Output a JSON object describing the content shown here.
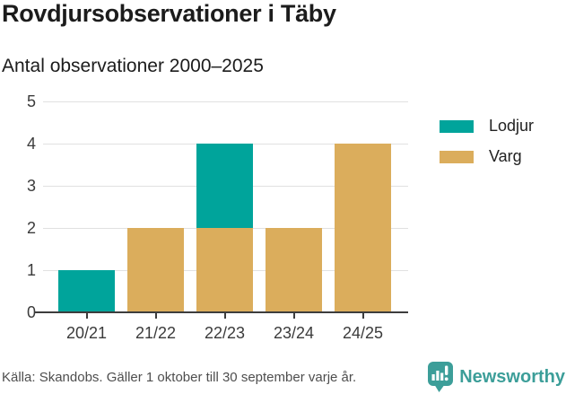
{
  "page": {
    "title": "Rovdjursobservationer i Täby",
    "subtitle": "Antal observationer 2000–2025",
    "source": "Källa: Skandobs. Gäller 1 oktober till 30 september varje år.",
    "brand_name": "Newsworthy"
  },
  "colors": {
    "lodjur": "#00A49B",
    "varg": "#DBAD5C",
    "brand_teal": "#3C9E99",
    "grid": "#E1E1E1",
    "axis": "#3D3D3D",
    "title_text": "#1C1C1C",
    "tick_text": "#3B3B3B",
    "source_text": "#4E4E4E"
  },
  "chart_data": {
    "type": "bar",
    "stacked": true,
    "title": "Rovdjursobservationer i Täby",
    "subtitle": "Antal observationer 2000–2025",
    "categories": [
      "20/21",
      "21/22",
      "22/23",
      "23/24",
      "24/25"
    ],
    "series": [
      {
        "name": "Lodjur",
        "color_key": "lodjur",
        "values": [
          1,
          0,
          2,
          0,
          0
        ]
      },
      {
        "name": "Varg",
        "color_key": "varg",
        "values": [
          0,
          2,
          2,
          2,
          4
        ]
      }
    ],
    "stack_bottom_to_top": [
      "Varg",
      "Lodjur"
    ],
    "ylim": [
      0,
      5
    ],
    "yticks": [
      0,
      1,
      2,
      3,
      4,
      5
    ],
    "grid": true,
    "legend_position": "right",
    "xlabel": "",
    "ylabel": ""
  }
}
